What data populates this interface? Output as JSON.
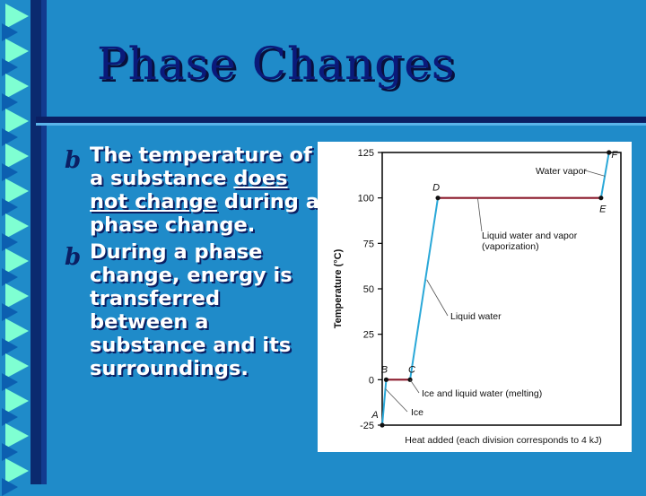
{
  "slide": {
    "title": "Phase Changes",
    "bullets": [
      {
        "parts": [
          {
            "text": "The temperature of a substance ",
            "u": false
          },
          {
            "text": "does not change",
            "u": true
          },
          {
            "text": " during a phase change.",
            "u": false
          }
        ]
      },
      {
        "parts": [
          {
            "text": "During a phase change, energy is transferred between a substance and its surroundings.",
            "u": false
          }
        ]
      }
    ],
    "bullet_symbol": "b"
  },
  "colors": {
    "background": "#1f8bc9",
    "title": "#0a1a7a",
    "bullet_text": "#ffffff",
    "plateau_line": "#8b1a2b",
    "rise_line": "#2aa8d8"
  },
  "chart_data": {
    "type": "line",
    "xlabel": "Heat added (each division corresponds to 4 kJ)",
    "ylabel": "Temperature (°C)",
    "ylim": [
      -25,
      125
    ],
    "yticks": [
      -25,
      0,
      25,
      50,
      75,
      100,
      125
    ],
    "xlim": [
      0,
      60
    ],
    "grid": false,
    "points": [
      {
        "label": "A",
        "x": 0,
        "y": -25
      },
      {
        "label": "B",
        "x": 1,
        "y": 0
      },
      {
        "label": "C",
        "x": 7,
        "y": 0
      },
      {
        "label": "D",
        "x": 14,
        "y": 100
      },
      {
        "label": "E",
        "x": 55,
        "y": 100
      },
      {
        "label": "F",
        "x": 57,
        "y": 125
      }
    ],
    "annotations": [
      {
        "text": "Water vapor",
        "segment": "E-F"
      },
      {
        "text": "Liquid water and vapor",
        "text2": "(vaporization)",
        "segment": "D-E"
      },
      {
        "text": "Liquid water",
        "segment": "C-D"
      },
      {
        "text": "Ice and liquid water (melting)",
        "segment": "B-C"
      },
      {
        "text": "Ice",
        "segment": "A-B"
      }
    ]
  }
}
